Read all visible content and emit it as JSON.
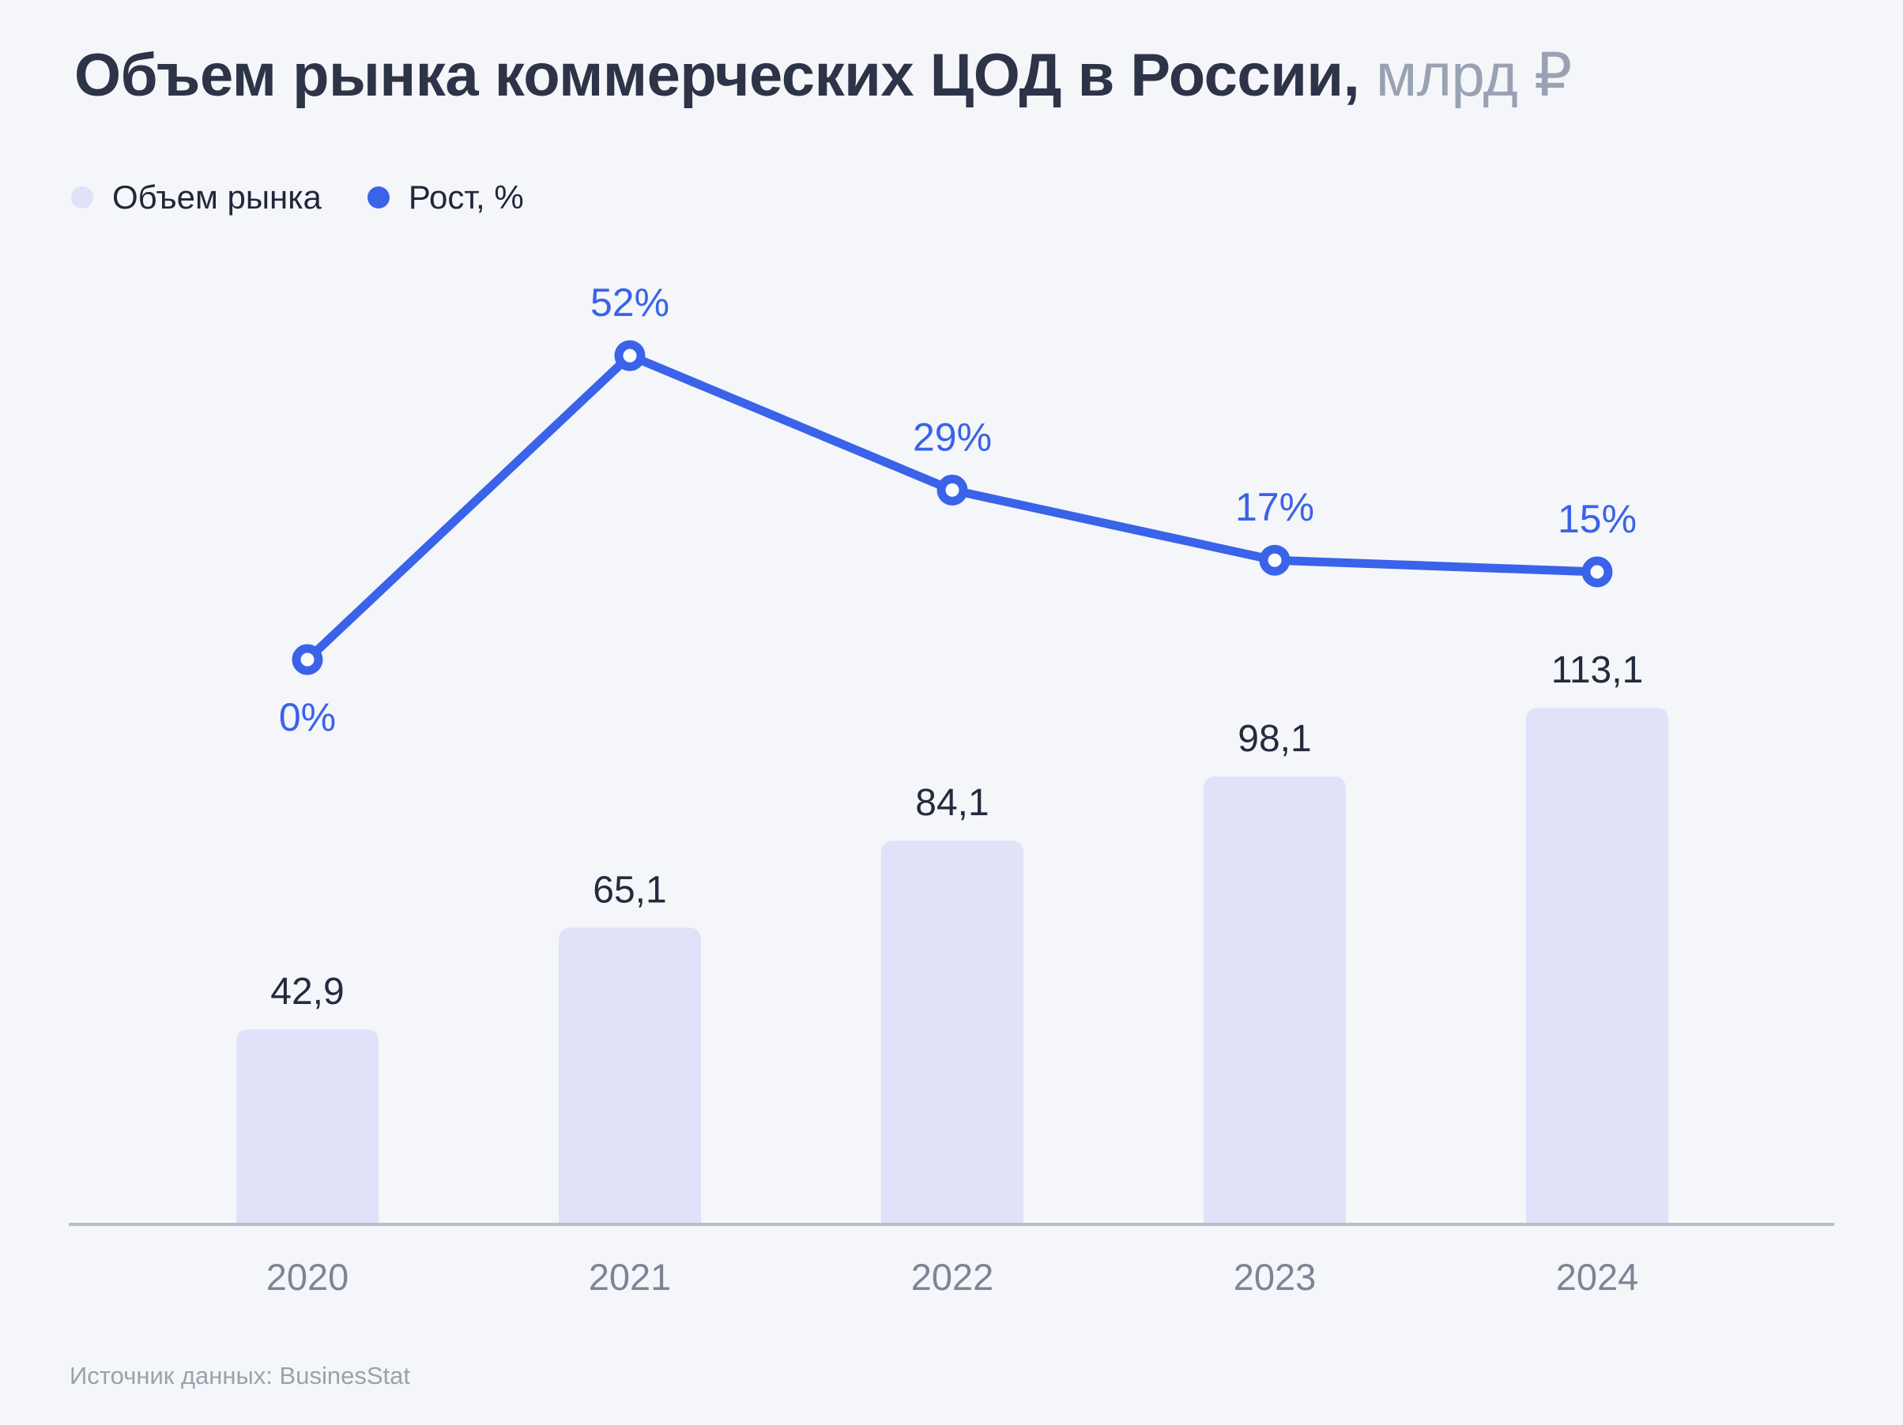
{
  "title": {
    "main": "Объем рынка коммерческих ЦОД в России,",
    "unit": " млрд ₽"
  },
  "legend": [
    {
      "label": "Объем рынка",
      "color": "#dfe2f9"
    },
    {
      "label": "Рост, %",
      "color": "#3a63e9"
    }
  ],
  "source": "Источник данных: BusinesStat",
  "chart_data": {
    "type": "bar",
    "subtype": "bar-with-line-overlay",
    "title": "Объем рынка коммерческих ЦОД в России, млрд ₽",
    "xlabel": "",
    "ylabel": "",
    "grid": false,
    "legend_position": "top-left",
    "categories": [
      "2020",
      "2021",
      "2022",
      "2023",
      "2024"
    ],
    "series": [
      {
        "name": "Объем рынка",
        "type": "bar",
        "values": [
          42.9,
          65.1,
          84.1,
          98.1,
          113.1
        ],
        "labels": [
          "42,9",
          "65,1",
          "84,1",
          "98,1",
          "113,1"
        ],
        "unit": "млрд ₽",
        "color": "#dfe2f9"
      },
      {
        "name": "Рост, %",
        "type": "line",
        "values": [
          0,
          52,
          29,
          17,
          15
        ],
        "labels": [
          "0%",
          "52%",
          "29%",
          "17%",
          "15%"
        ],
        "unit": "%",
        "color": "#3a63e9",
        "marker": "open-circle",
        "label_position": [
          "below",
          "above",
          "above",
          "above",
          "above"
        ]
      }
    ],
    "axis_color": "#b9bfc8",
    "background_color": "#f4f6f9"
  }
}
